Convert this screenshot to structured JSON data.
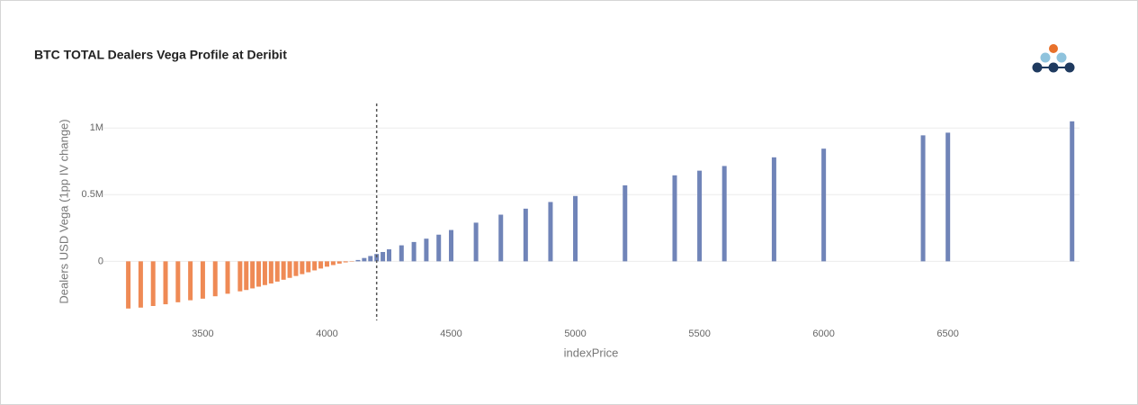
{
  "chart_data": {
    "type": "bar",
    "title": "BTC TOTAL Dealers Vega Profile at Deribit",
    "x_label": "indexPrice",
    "y_label": "Dealers USD Vega (1pp IV change)",
    "x": [
      3200,
      3250,
      3300,
      3350,
      3400,
      3450,
      3500,
      3550,
      3600,
      3650,
      3675,
      3700,
      3725,
      3750,
      3775,
      3800,
      3825,
      3850,
      3875,
      3900,
      3925,
      3950,
      3975,
      4000,
      4025,
      4050,
      4075,
      4100,
      4125,
      4150,
      4175,
      4200,
      4225,
      4250,
      4300,
      4350,
      4400,
      4450,
      4500,
      4600,
      4700,
      4800,
      4900,
      5000,
      5200,
      5400,
      5500,
      5600,
      5800,
      6000,
      6400,
      6500,
      7000
    ],
    "values": [
      -354000,
      -347000,
      -335000,
      -322000,
      -307000,
      -292000,
      -280000,
      -262000,
      -243000,
      -225000,
      -215000,
      -203000,
      -190000,
      -178000,
      -166000,
      -152000,
      -138000,
      -124000,
      -110000,
      -96000,
      -82000,
      -68000,
      -54000,
      -40000,
      -28000,
      -17000,
      -8000,
      -3000,
      10000,
      25000,
      40000,
      55000,
      70000,
      90000,
      120000,
      145000,
      170000,
      200000,
      235000,
      290000,
      350000,
      395000,
      445000,
      490000,
      570000,
      645000,
      680000,
      715000,
      780000,
      845000,
      945000,
      965000,
      1050000
    ],
    "color_negative": "#ef8a55",
    "color_positive": "#7084b8",
    "vline": 4200,
    "xlim": [
      3100,
      7030
    ],
    "ylim": [
      -470000,
      1150000
    ],
    "xticks": [
      3500,
      4000,
      4500,
      5000,
      5500,
      6000,
      6500
    ],
    "yticks": [
      0,
      {
        "value": 500000,
        "label": "0.5M"
      },
      {
        "value": 1000000,
        "label": "1M"
      }
    ],
    "grid": true
  }
}
